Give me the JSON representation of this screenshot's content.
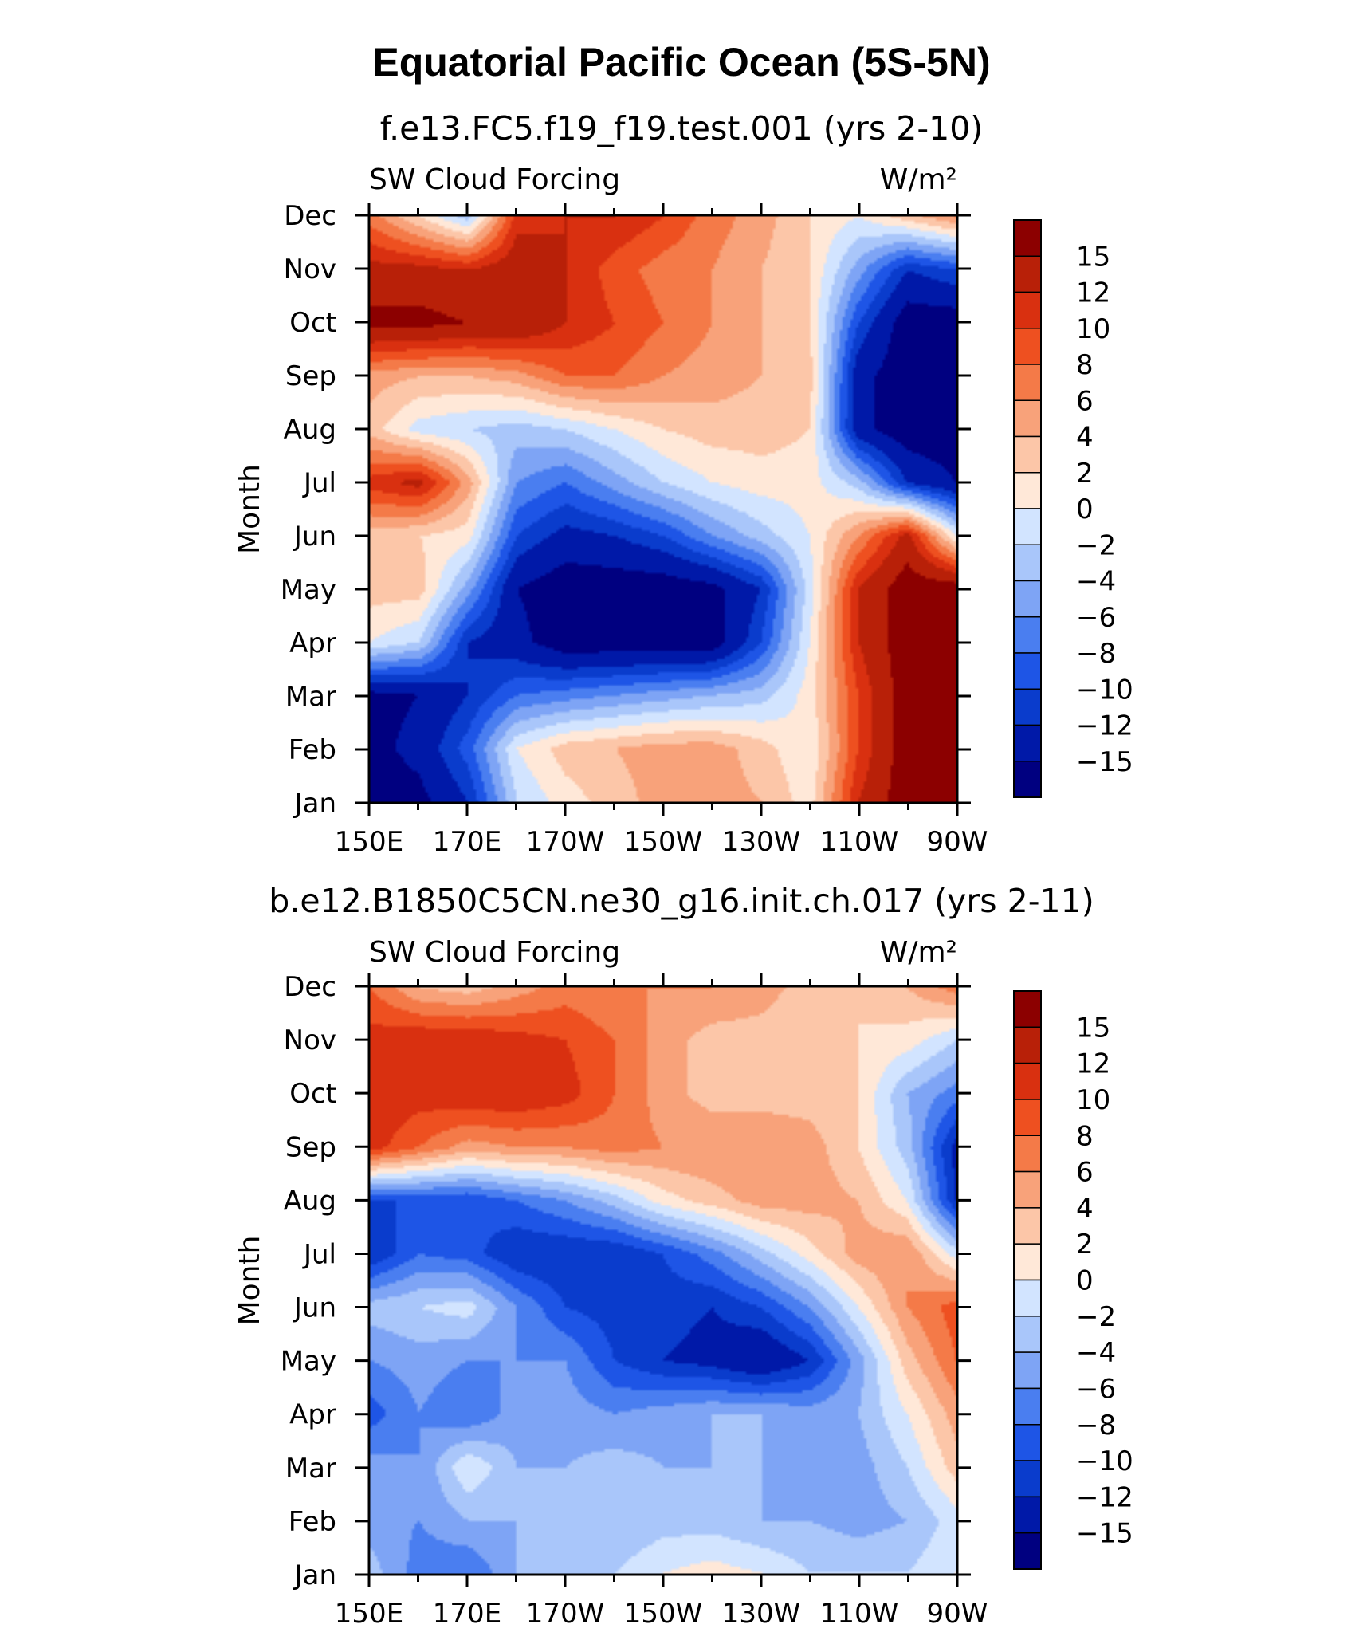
{
  "title": "Equatorial Pacific Ocean (5S-5N)",
  "colors": {
    "levels": [
      "#000080",
      "#0019a8",
      "#0a3ccc",
      "#1e55e6",
      "#4a7ef0",
      "#7ea4f5",
      "#a9c6fa",
      "#d2e4ff",
      "#ffe8d8",
      "#fcc6a8",
      "#f8a27a",
      "#f47a48",
      "#ee5020",
      "#d93010",
      "#b82008",
      "#8c0000"
    ],
    "frame": "#000000",
    "background": "#ffffff"
  },
  "chart_data": [
    {
      "type": "heatmap",
      "subtitle": "f.e13.FC5.f19_f19.test.001 (yrs 2-10)",
      "variable": "SW Cloud Forcing",
      "units": "W/m²",
      "ylabel": "Month",
      "x_ticks": [
        "150E",
        "170E",
        "170W",
        "150W",
        "130W",
        "110W",
        "90W"
      ],
      "y_ticks": [
        "Jan",
        "Feb",
        "Mar",
        "Apr",
        "May",
        "Jun",
        "Jul",
        "Aug",
        "Sep",
        "Oct",
        "Nov",
        "Dec"
      ],
      "colorbar_labels": [
        "15",
        "12",
        "10",
        "8",
        "6",
        "4",
        "2",
        "0",
        "-2",
        "-4",
        "-6",
        "-8",
        "-10",
        "-12",
        "-15"
      ],
      "x": [
        150,
        160,
        170,
        180,
        190,
        200,
        210,
        220,
        230,
        240,
        250,
        260,
        270
      ],
      "y": [
        "Jan",
        "Feb",
        "Mar",
        "Apr",
        "May",
        "Jun",
        "Jul",
        "Aug",
        "Sep",
        "Oct",
        "Nov",
        "Dec"
      ],
      "z": [
        [
          -17,
          -16,
          -12,
          -2,
          1,
          3,
          5,
          5,
          4,
          1,
          12,
          17,
          17
        ],
        [
          -16,
          -14,
          -9,
          0,
          3,
          4,
          5,
          5,
          3,
          0,
          10,
          17,
          17
        ],
        [
          -16,
          -15,
          -12,
          -8,
          -7,
          -6,
          -5,
          -4,
          -3,
          1,
          10,
          17,
          17
        ],
        [
          0,
          -2,
          -12,
          -14,
          -17,
          -17,
          -17,
          -17,
          -10,
          0,
          12,
          17,
          17
        ],
        [
          3,
          3,
          -5,
          -15,
          -17,
          -17,
          -17,
          -16,
          -12,
          -1,
          12,
          17,
          17
        ],
        [
          3,
          2,
          1,
          -10,
          -13,
          -12,
          -10,
          -6,
          -3,
          0,
          6,
          13,
          0
        ],
        [
          11,
          13,
          5,
          -6,
          -8,
          -5,
          -2,
          0,
          1,
          1,
          -3,
          -12,
          -15
        ],
        [
          3,
          -1,
          -2,
          -3,
          -2,
          0,
          2,
          3,
          3,
          2,
          -14,
          -17,
          -17
        ],
        [
          5,
          4,
          4,
          5,
          8,
          8,
          6,
          5,
          4,
          3,
          -14,
          -17,
          -17
        ],
        [
          16,
          16,
          15,
          15,
          12,
          10,
          8,
          6,
          4,
          2,
          -10,
          -17,
          -17
        ],
        [
          13,
          13,
          12,
          14,
          12,
          9,
          7,
          6,
          4,
          2,
          -5,
          -12,
          -10
        ],
        [
          7,
          2,
          -3,
          11,
          12,
          12,
          10,
          7,
          5,
          2,
          0,
          3,
          6
        ]
      ]
    },
    {
      "type": "heatmap",
      "subtitle": "b.e12.B1850C5CN.ne30_g16.init.ch.017 (yrs 2-11)",
      "variable": "SW Cloud Forcing",
      "units": "W/m²",
      "ylabel": "Month",
      "x_ticks": [
        "150E",
        "170E",
        "170W",
        "150W",
        "130W",
        "110W",
        "90W"
      ],
      "y_ticks": [
        "Jan",
        "Feb",
        "Mar",
        "Apr",
        "May",
        "Jun",
        "Jul",
        "Aug",
        "Sep",
        "Oct",
        "Nov",
        "Dec"
      ],
      "colorbar_labels": [
        "15",
        "12",
        "10",
        "8",
        "6",
        "4",
        "2",
        "0",
        "-2",
        "-4",
        "-6",
        "-8",
        "-10",
        "-12",
        "-15"
      ],
      "x": [
        150,
        160,
        170,
        180,
        190,
        200,
        210,
        220,
        230,
        240,
        250,
        260,
        270
      ],
      "y": [
        "Jan",
        "Feb",
        "Mar",
        "Apr",
        "May",
        "Jun",
        "Jul",
        "Aug",
        "Sep",
        "Oct",
        "Nov",
        "Dec"
      ],
      "z": [
        [
          -3,
          -7,
          -8,
          -4,
          -3,
          -2,
          0,
          1,
          0,
          -2,
          -2,
          -2,
          0
        ],
        [
          -5,
          -6,
          -4,
          -4,
          -3,
          -4,
          -3,
          -3,
          -4,
          -4,
          -5,
          -4,
          -1
        ],
        [
          -5,
          -6,
          0,
          -4,
          -4,
          -3,
          -4,
          -4,
          -4,
          -6,
          -5,
          -2,
          3
        ],
        [
          -9,
          -6,
          -8,
          -5,
          -5,
          -6,
          -5,
          -4,
          -4,
          -5,
          -4,
          0,
          5
        ],
        [
          -6,
          -5,
          -6,
          -6,
          -6,
          -10,
          -12,
          -13,
          -15,
          -12,
          -5,
          3,
          8
        ],
        [
          -3,
          -2,
          -1,
          -6,
          -10,
          -11,
          -11,
          -12,
          -10,
          -6,
          0,
          6,
          9
        ],
        [
          -12,
          -8,
          -9,
          -12,
          -12,
          -12,
          -10,
          -7,
          -3,
          1,
          5,
          6,
          -1
        ],
        [
          -10,
          -10,
          -10,
          -8,
          -6,
          -3,
          1,
          3,
          5,
          5,
          4,
          0,
          -12
        ],
        [
          11,
          8,
          5,
          6,
          6,
          7,
          6,
          6,
          6,
          5,
          2,
          -3,
          -13
        ],
        [
          12,
          11,
          12,
          12,
          11,
          8,
          5,
          3,
          3,
          3,
          2,
          -4,
          -7
        ],
        [
          11,
          12,
          12,
          11,
          10,
          8,
          5,
          3,
          3,
          2,
          2,
          1,
          -2
        ],
        [
          8,
          4,
          3,
          5,
          7,
          6,
          6,
          6,
          5,
          3,
          2,
          4,
          7
        ]
      ]
    }
  ]
}
